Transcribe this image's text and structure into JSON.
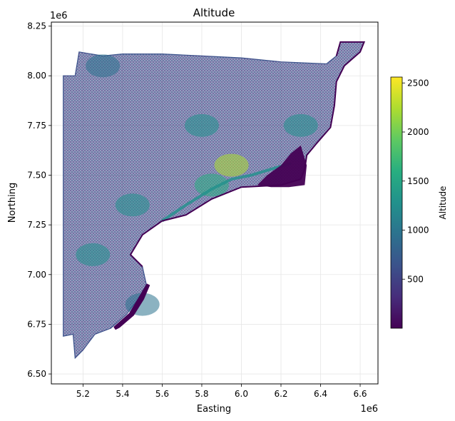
{
  "chart_data": {
    "type": "scatter",
    "title": "Altitude",
    "xlabel": "Easting",
    "ylabel": "Northing",
    "x_offset_label": "1e6",
    "y_offset_label": "1e6",
    "xlim": [
      5.04,
      6.69
    ],
    "ylim": [
      6.45,
      8.27
    ],
    "x_ticks": [
      5.2,
      5.4,
      5.6,
      5.8,
      6.0,
      6.2,
      6.4,
      6.6
    ],
    "x_tick_labels": [
      "5.2",
      "5.4",
      "5.6",
      "5.8",
      "6.0",
      "6.2",
      "6.4",
      "6.6"
    ],
    "y_ticks": [
      6.5,
      6.75,
      7.0,
      7.25,
      7.5,
      7.75,
      8.0,
      8.25
    ],
    "y_tick_labels": [
      "6.50",
      "6.75",
      "7.00",
      "7.25",
      "7.50",
      "7.75",
      "8.00",
      "8.25"
    ],
    "grid": true,
    "colormap": "viridis",
    "colorbar": {
      "label": "Altitude",
      "range": [
        0,
        2560
      ],
      "ticks": [
        500,
        1000,
        1500,
        2000,
        2500
      ],
      "tick_labels": [
        "500",
        "1000",
        "1500",
        "2000",
        "2500"
      ]
    },
    "region_outline": [
      [
        5.1,
        8.0
      ],
      [
        5.16,
        8.0
      ],
      [
        5.18,
        8.12
      ],
      [
        5.3,
        8.1
      ],
      [
        5.4,
        8.11
      ],
      [
        5.6,
        8.11
      ],
      [
        5.8,
        8.1
      ],
      [
        6.0,
        8.09
      ],
      [
        6.2,
        8.07
      ],
      [
        6.43,
        8.06
      ],
      [
        6.48,
        8.1
      ],
      [
        6.5,
        8.17
      ],
      [
        6.62,
        8.17
      ],
      [
        6.6,
        8.12
      ],
      [
        6.52,
        8.05
      ],
      [
        6.48,
        7.97
      ],
      [
        6.47,
        7.85
      ],
      [
        6.45,
        7.74
      ],
      [
        6.38,
        7.66
      ],
      [
        6.33,
        7.6
      ],
      [
        6.32,
        7.53
      ],
      [
        6.3,
        7.48
      ],
      [
        6.2,
        7.45
      ],
      [
        6.0,
        7.44
      ],
      [
        5.85,
        7.38
      ],
      [
        5.72,
        7.3
      ],
      [
        5.6,
        7.27
      ],
      [
        5.5,
        7.2
      ],
      [
        5.44,
        7.1
      ],
      [
        5.5,
        7.04
      ],
      [
        5.52,
        6.95
      ],
      [
        5.48,
        6.88
      ],
      [
        5.42,
        6.8
      ],
      [
        5.34,
        6.73
      ],
      [
        5.26,
        6.7
      ],
      [
        5.2,
        6.62
      ],
      [
        5.16,
        6.58
      ],
      [
        5.15,
        6.7
      ],
      [
        5.1,
        6.69
      ],
      [
        5.1,
        7.2
      ],
      [
        5.1,
        8.0
      ]
    ],
    "coastal_lowland": [
      [
        6.13,
        7.5
      ],
      [
        6.2,
        7.55
      ],
      [
        6.25,
        7.61
      ],
      [
        6.3,
        7.65
      ],
      [
        6.33,
        7.55
      ],
      [
        6.32,
        7.45
      ],
      [
        6.24,
        7.44
      ],
      [
        6.15,
        7.44
      ],
      [
        6.08,
        7.45
      ]
    ],
    "southern_lowland": [
      [
        5.36,
        6.73
      ],
      [
        5.44,
        6.8
      ],
      [
        5.5,
        6.9
      ],
      [
        5.53,
        6.95
      ],
      [
        5.5,
        6.88
      ],
      [
        5.45,
        6.8
      ],
      [
        5.38,
        6.74
      ]
    ],
    "highland_patches": [
      {
        "x": 5.25,
        "y": 7.1,
        "value": 1300
      },
      {
        "x": 5.45,
        "y": 7.35,
        "value": 1200
      },
      {
        "x": 5.8,
        "y": 7.75,
        "value": 1400
      },
      {
        "x": 5.95,
        "y": 7.55,
        "value": 2100
      },
      {
        "x": 5.85,
        "y": 7.45,
        "value": 1600
      },
      {
        "x": 5.3,
        "y": 8.05,
        "value": 800
      },
      {
        "x": 5.5,
        "y": 6.85,
        "value": 1100
      },
      {
        "x": 6.3,
        "y": 7.75,
        "value": 1300
      }
    ],
    "escarpment_line": [
      [
        5.6,
        7.27
      ],
      [
        5.72,
        7.35
      ],
      [
        5.85,
        7.43
      ],
      [
        5.95,
        7.48
      ],
      [
        6.05,
        7.5
      ],
      [
        6.15,
        7.53
      ],
      [
        6.25,
        7.56
      ]
    ]
  }
}
